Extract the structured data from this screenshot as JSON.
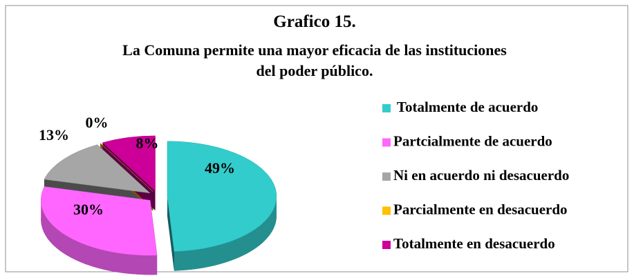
{
  "chart_data": {
    "type": "pie",
    "title": "Grafico 15.",
    "subtitle": "La Comuna permite una mayor eficacia de las instituciones del poder público.",
    "categories": [
      " Totalmente de acuerdo",
      "Partcialmente de acuerdo",
      "Ni en acuerdo ni desacuerdo",
      "Parcialmente en desacuerdo",
      "Totalmente en desacuerdo"
    ],
    "values": [
      49,
      30,
      13,
      0,
      8
    ],
    "value_labels": [
      "49%",
      "30%",
      "13%",
      "0%",
      "8%"
    ],
    "colors": [
      "#33CCCC",
      "#FF66FF",
      "#A6A6A6",
      "#FFC000",
      "#CC0099"
    ],
    "legend": "right"
  }
}
